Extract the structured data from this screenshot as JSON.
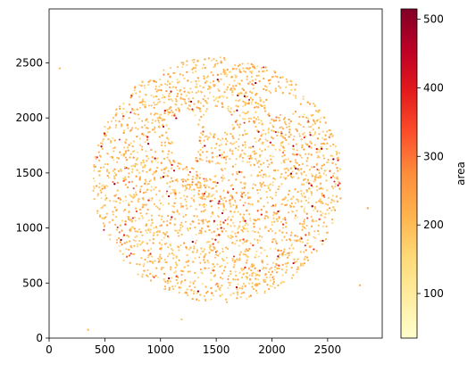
{
  "chart_data": {
    "type": "scatter",
    "title": "",
    "xlabel": "",
    "ylabel": "",
    "xlim": [
      0,
      2990
    ],
    "ylim": [
      0,
      2990
    ],
    "xticks": [
      0,
      500,
      1000,
      1500,
      2000,
      2500
    ],
    "yticks": [
      0,
      500,
      1000,
      1500,
      2000,
      2500
    ],
    "grid": false,
    "legend": "none",
    "point_cloud": {
      "shape": "disk",
      "center": [
        1510,
        1440
      ],
      "radius": 1120,
      "value_mean": 200,
      "value_min": 35,
      "value_max": 515
    },
    "empty_regions": [
      {
        "center": [
          1230,
          1820
        ],
        "radii": [
          120,
          260
        ]
      },
      {
        "center": [
          1510,
          1970
        ],
        "radii": [
          140,
          120
        ]
      },
      {
        "center": [
          2100,
          2120
        ],
        "radii": [
          140,
          90
        ]
      },
      {
        "center": [
          1470,
          1540
        ],
        "radii": [
          40,
          60
        ]
      },
      {
        "center": [
          1130,
          880
        ],
        "radii": [
          80,
          35
        ]
      },
      {
        "center": [
          1950,
          870
        ],
        "radii": [
          50,
          60
        ]
      }
    ],
    "outliers": [
      {
        "x": 95,
        "y": 2450,
        "value": 200
      },
      {
        "x": 350,
        "y": 75,
        "value": 200
      },
      {
        "x": 1190,
        "y": 170,
        "value": 180
      },
      {
        "x": 2790,
        "y": 480,
        "value": 220
      },
      {
        "x": 2860,
        "y": 1180,
        "value": 240
      }
    ],
    "colorbar": {
      "label": "area",
      "min": 35,
      "max": 515,
      "ticks": [
        100,
        200,
        300,
        400,
        500
      ],
      "colormap": "YlOrRd",
      "colors": [
        "#ffffcc",
        "#ffeda0",
        "#fed976",
        "#feb24c",
        "#fd8d3c",
        "#fc4e2a",
        "#e31a1c",
        "#bd0026",
        "#800026"
      ]
    }
  }
}
